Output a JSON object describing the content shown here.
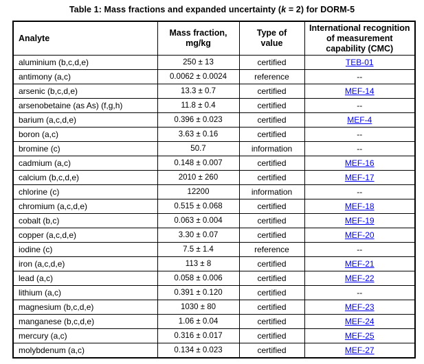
{
  "title": {
    "part1": "Table 1: Mass fractions and expanded uncertainty (",
    "k": "k",
    "part2": " = 2) for DORM-5"
  },
  "table": {
    "columns": [
      "Analyte",
      "Mass fraction,\nmg/kg",
      "Type of\nvalue",
      "International recognition\nof measurement\ncapability (CMC)"
    ],
    "rows": [
      {
        "analyte": "aluminium (b,c,d,e)",
        "mass_fraction": "250 ± 13",
        "type": "certified",
        "cmc": "TEB-01",
        "cmc_is_link": true
      },
      {
        "analyte": "antimony (a,c)",
        "mass_fraction": "0.0062 ± 0.0024",
        "type": "reference",
        "cmc": "--",
        "cmc_is_link": false
      },
      {
        "analyte": "arsenic (b,c,d,e)",
        "mass_fraction": "13.3 ± 0.7",
        "type": "certified",
        "cmc": "MEF-14",
        "cmc_is_link": true
      },
      {
        "analyte": "arsenobetaine (as As) (f,g,h)",
        "mass_fraction": "11.8 ± 0.4",
        "type": "certified",
        "cmc": "--",
        "cmc_is_link": false
      },
      {
        "analyte": "barium (a,c,d,e)",
        "mass_fraction": "0.396 ± 0.023",
        "type": "certified",
        "cmc": "MEF-4",
        "cmc_is_link": true
      },
      {
        "analyte": "boron (a,c)",
        "mass_fraction": "3.63 ± 0.16",
        "type": "certified",
        "cmc": "--",
        "cmc_is_link": false
      },
      {
        "analyte": "bromine (c)",
        "mass_fraction": "50.7",
        "type": "information",
        "cmc": "--",
        "cmc_is_link": false
      },
      {
        "analyte": "cadmium (a,c)",
        "mass_fraction": "0.148 ± 0.007",
        "type": "certified",
        "cmc": "MEF-16",
        "cmc_is_link": true
      },
      {
        "analyte": "calcium (b,c,d,e)",
        "mass_fraction": "2010 ± 260",
        "type": "certified",
        "cmc": "MEF-17",
        "cmc_is_link": true
      },
      {
        "analyte": "chlorine (c)",
        "mass_fraction": "12200",
        "type": "information",
        "cmc": "--",
        "cmc_is_link": false
      },
      {
        "analyte": "chromium (a,c,d,e)",
        "mass_fraction": "0.515 ± 0.068",
        "type": "certified",
        "cmc": "MEF-18",
        "cmc_is_link": true
      },
      {
        "analyte": "cobalt (b,c)",
        "mass_fraction": "0.063 ± 0.004",
        "type": "certified",
        "cmc": "MEF-19",
        "cmc_is_link": true
      },
      {
        "analyte": "copper (a,c,d,e)",
        "mass_fraction": "3.30 ± 0.07",
        "type": "certified",
        "cmc": "MEF-20",
        "cmc_is_link": true
      },
      {
        "analyte": "iodine (c)",
        "mass_fraction": "7.5 ± 1.4",
        "type": "reference",
        "cmc": "--",
        "cmc_is_link": false
      },
      {
        "analyte": "iron (a,c,d,e)",
        "mass_fraction": "113 ± 8",
        "type": "certified",
        "cmc": "MEF-21",
        "cmc_is_link": true
      },
      {
        "analyte": "lead (a,c)",
        "mass_fraction": "0.058 ± 0.006",
        "type": "certified",
        "cmc": "MEF-22",
        "cmc_is_link": true
      },
      {
        "analyte": "lithium (a,c)",
        "mass_fraction": "0.391 ± 0.120",
        "type": "certified",
        "cmc": "--",
        "cmc_is_link": false
      },
      {
        "analyte": "magnesium (b,c,d,e)",
        "mass_fraction": "1030 ± 80",
        "type": "certified",
        "cmc": "MEF-23",
        "cmc_is_link": true
      },
      {
        "analyte": "manganese (b,c,d,e)",
        "mass_fraction": "1.06 ± 0.04",
        "type": "certified",
        "cmc": "MEF-24",
        "cmc_is_link": true
      },
      {
        "analyte": "mercury (a,c)",
        "mass_fraction": "0.316 ± 0.017",
        "type": "certified",
        "cmc": "MEF-25",
        "cmc_is_link": true
      },
      {
        "analyte": "molybdenum (a,c)",
        "mass_fraction": "0.134 ± 0.023",
        "type": "certified",
        "cmc": "MEF-27",
        "cmc_is_link": true
      }
    ]
  },
  "colors": {
    "link": "#0000EE",
    "text": "#000000",
    "border": "#000000"
  }
}
